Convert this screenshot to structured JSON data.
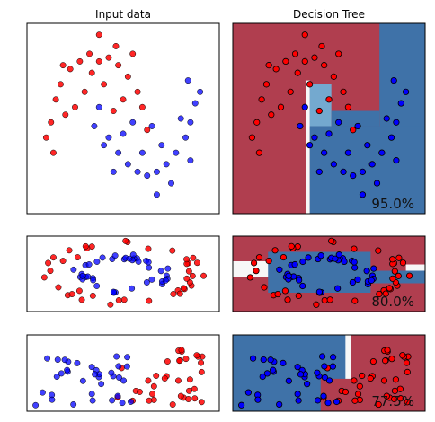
{
  "colors": {
    "red": "#b2182b",
    "red_region": "#b03e4f",
    "blue": "#0a1ee0",
    "blue_region": "#3f72a8",
    "light_blue_region": "#74a9cf",
    "white_region": "#f7f7f7",
    "point_red": "#ff0000",
    "point_blue": "#0000ff"
  },
  "chart_data": [
    {
      "type": "scatter",
      "title": "Input data",
      "dataset": "moons",
      "xlim": [
        -1.5,
        2.5
      ],
      "ylim": [
        -1.0,
        1.5
      ],
      "series": [
        {
          "color": "red",
          "points": [
            [
              -1.0,
              0.2
            ],
            [
              -0.9,
              0.5
            ],
            [
              -0.8,
              0.7
            ],
            [
              -0.6,
              0.9
            ],
            [
              -0.4,
              1.0
            ],
            [
              -0.2,
              1.1
            ],
            [
              0.0,
              1.0
            ],
            [
              0.2,
              1.05
            ],
            [
              0.4,
              0.95
            ],
            [
              0.6,
              0.8
            ],
            [
              0.8,
              0.6
            ],
            [
              0.9,
              0.4
            ],
            [
              1.0,
              0.1
            ],
            [
              -1.1,
              0.0
            ],
            [
              -0.7,
              0.3
            ],
            [
              -0.3,
              0.6
            ],
            [
              0.1,
              0.7
            ],
            [
              0.5,
              0.5
            ],
            [
              -0.5,
              0.4
            ],
            [
              0.3,
              0.35
            ],
            [
              -0.95,
              -0.2
            ],
            [
              0.0,
              1.35
            ],
            [
              0.7,
              1.1
            ],
            [
              -0.15,
              0.85
            ],
            [
              0.35,
              1.2
            ],
            [
              -0.75,
              0.95
            ]
          ]
        },
        {
          "color": "blue",
          "points": [
            [
              0.0,
              0.4
            ],
            [
              0.2,
              0.0
            ],
            [
              0.4,
              -0.2
            ],
            [
              0.6,
              -0.35
            ],
            [
              0.8,
              -0.45
            ],
            [
              1.0,
              -0.5
            ],
            [
              1.2,
              -0.45
            ],
            [
              1.4,
              -0.35
            ],
            [
              1.6,
              -0.2
            ],
            [
              1.8,
              0.0
            ],
            [
              1.9,
              0.2
            ],
            [
              2.0,
              0.45
            ],
            [
              0.1,
              -0.1
            ],
            [
              0.5,
              0.05
            ],
            [
              0.9,
              -0.2
            ],
            [
              1.3,
              -0.1
            ],
            [
              1.7,
              0.25
            ],
            [
              1.1,
              0.15
            ],
            [
              0.3,
              -0.45
            ],
            [
              1.5,
              -0.6
            ],
            [
              1.9,
              -0.3
            ],
            [
              2.1,
              0.6
            ],
            [
              0.7,
              0.2
            ],
            [
              -0.1,
              0.15
            ],
            [
              1.85,
              0.75
            ],
            [
              1.2,
              -0.75
            ]
          ]
        }
      ]
    },
    {
      "type": "scatter",
      "title": "Decision Tree",
      "dataset": "moons",
      "score_label": "95.0%",
      "xlim": [
        -1.5,
        2.5
      ],
      "ylim": [
        -1.0,
        1.5
      ]
    },
    {
      "type": "scatter",
      "title": "",
      "dataset": "circles",
      "xlim": [
        -1.5,
        1.5
      ],
      "ylim": [
        -0.6,
        0.6
      ]
    },
    {
      "type": "scatter",
      "title": "",
      "dataset": "circles",
      "score_label": "80.0%",
      "xlim": [
        -1.5,
        1.5
      ],
      "ylim": [
        -0.6,
        0.6
      ]
    },
    {
      "type": "scatter",
      "title": "",
      "dataset": "linear",
      "xlim": [
        -3.0,
        4.0
      ],
      "ylim": [
        -1.5,
        2.5
      ]
    },
    {
      "type": "scatter",
      "title": "",
      "dataset": "linear",
      "score_label": "77.5%",
      "xlim": [
        -3.0,
        4.0
      ],
      "ylim": [
        -1.5,
        2.5
      ]
    }
  ]
}
